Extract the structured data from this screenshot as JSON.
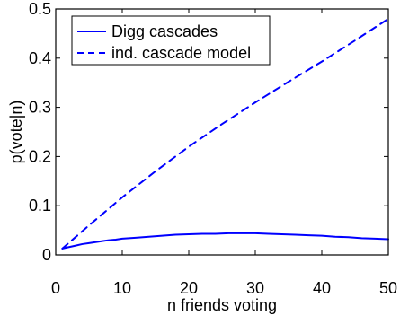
{
  "chart_data": {
    "type": "line",
    "title": "",
    "xlabel": "n friends voting",
    "ylabel": "p(vote|n)",
    "xlim": [
      0,
      50
    ],
    "ylim": [
      0,
      0.5
    ],
    "x_ticks": [
      0,
      10,
      20,
      30,
      40,
      50
    ],
    "y_ticks": [
      0,
      0.1,
      0.2,
      0.3,
      0.4,
      0.5
    ],
    "x_tick_labels": [
      "0",
      "10",
      "20",
      "30",
      "40",
      "50"
    ],
    "y_tick_labels": [
      "0",
      "0.1",
      "0.2",
      "0.3",
      "0.4",
      "0.5"
    ],
    "grid": false,
    "legend_position": "top-left",
    "series": [
      {
        "name": "Digg cascades",
        "style": "solid",
        "color": "#0000ff",
        "x": [
          1,
          2,
          3,
          4,
          5,
          6,
          7,
          8,
          9,
          10,
          12,
          14,
          16,
          18,
          20,
          22,
          24,
          26,
          28,
          30,
          32,
          34,
          36,
          38,
          40,
          42,
          44,
          46,
          48,
          50
        ],
        "y": [
          0.013,
          0.016,
          0.019,
          0.022,
          0.024,
          0.026,
          0.028,
          0.03,
          0.031,
          0.033,
          0.035,
          0.037,
          0.039,
          0.041,
          0.042,
          0.043,
          0.043,
          0.044,
          0.044,
          0.044,
          0.043,
          0.042,
          0.041,
          0.04,
          0.039,
          0.037,
          0.036,
          0.034,
          0.033,
          0.032
        ]
      },
      {
        "name": "ind. cascade model",
        "style": "dashed",
        "color": "#0000ff",
        "x": [
          1,
          5,
          10,
          15,
          20,
          25,
          30,
          35,
          40,
          45,
          50
        ],
        "y": [
          0.013,
          0.06,
          0.117,
          0.17,
          0.22,
          0.266,
          0.31,
          0.352,
          0.393,
          0.436,
          0.48
        ]
      }
    ]
  }
}
